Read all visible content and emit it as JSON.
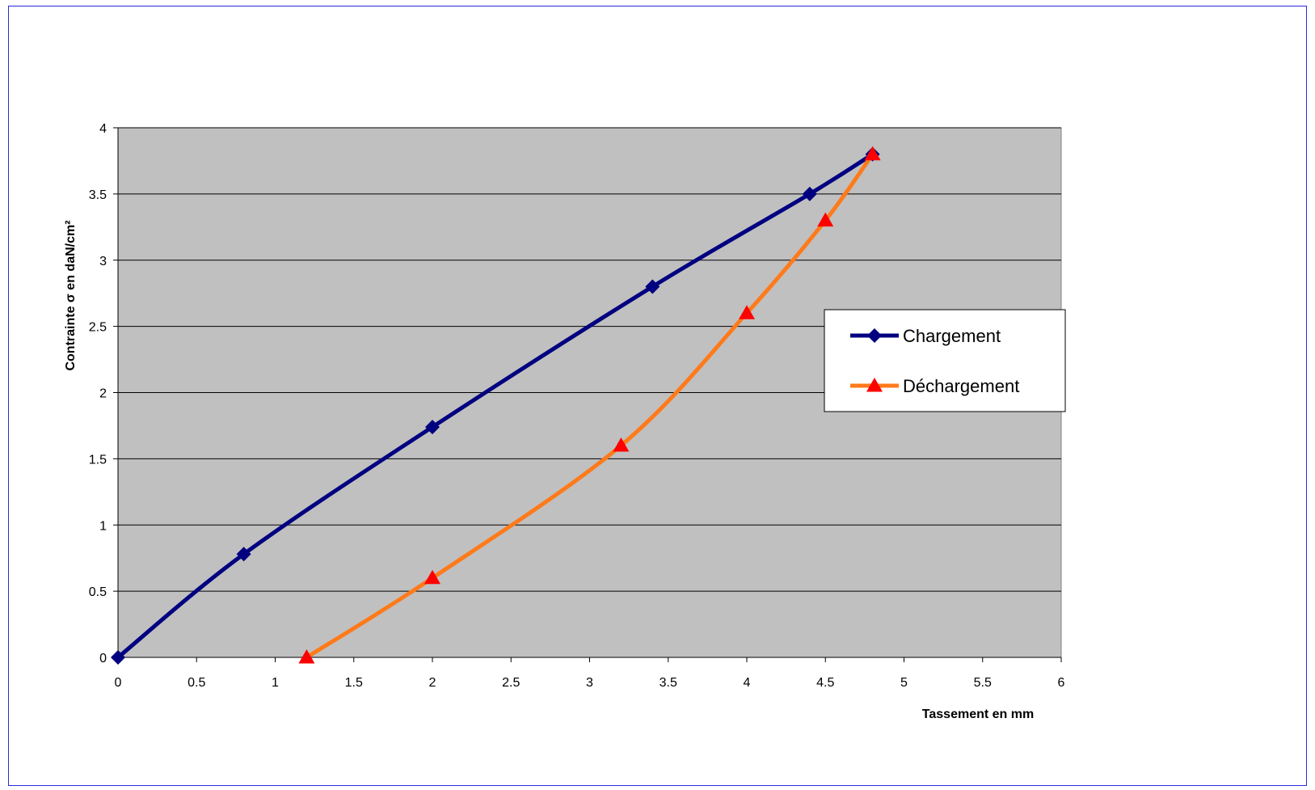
{
  "chart_data": {
    "type": "line",
    "title": "",
    "xlabel": "Tassement en mm",
    "ylabel": "Contrainte σ en daN/cm²",
    "xlim": [
      0,
      6
    ],
    "ylim": [
      0,
      4
    ],
    "xticks": [
      "0",
      "0.5",
      "1",
      "1.5",
      "2",
      "2.5",
      "3",
      "3.5",
      "4",
      "4.5",
      "5",
      "5.5",
      "6"
    ],
    "yticks": [
      "0",
      "0.5",
      "1",
      "1.5",
      "2",
      "2.5",
      "3",
      "3.5",
      "4"
    ],
    "grid": "horizontal",
    "plot_background": "#c0c0c0",
    "legend_position": "right",
    "series": [
      {
        "name": "Chargement",
        "color": "#000080",
        "marker": "diamond",
        "marker_color": "#000080",
        "x": [
          0,
          0.8,
          2,
          3.4,
          4.4,
          4.8
        ],
        "y": [
          0,
          0.78,
          1.74,
          2.8,
          3.5,
          3.8
        ]
      },
      {
        "name": "Déchargement",
        "color": "#ff7a1a",
        "marker": "triangle",
        "marker_color": "#ff0000",
        "x": [
          1.2,
          2,
          3.2,
          4,
          4.5,
          4.8
        ],
        "y": [
          0,
          0.6,
          1.6,
          2.6,
          3.3,
          3.8
        ]
      }
    ]
  }
}
